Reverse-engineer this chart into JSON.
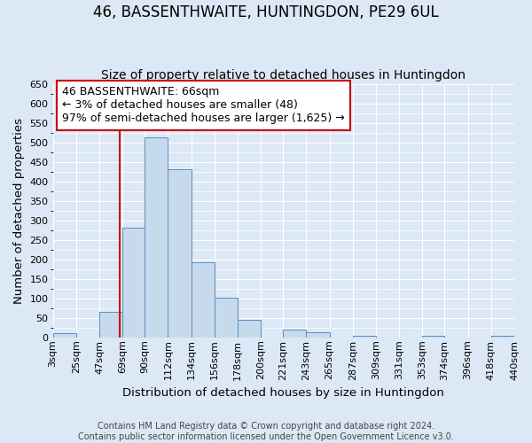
{
  "title": "46, BASSENTHWAITE, HUNTINGDON, PE29 6UL",
  "subtitle": "Size of property relative to detached houses in Huntingdon",
  "xlabel": "Distribution of detached houses by size in Huntingdon",
  "ylabel": "Number of detached properties",
  "footer_line1": "Contains HM Land Registry data © Crown copyright and database right 2024.",
  "footer_line2": "Contains public sector information licensed under the Open Government Licence v3.0.",
  "bin_labels": [
    "3sqm",
    "25sqm",
    "47sqm",
    "69sqm",
    "90sqm",
    "112sqm",
    "134sqm",
    "156sqm",
    "178sqm",
    "200sqm",
    "221sqm",
    "243sqm",
    "265sqm",
    "287sqm",
    "309sqm",
    "331sqm",
    "353sqm",
    "374sqm",
    "396sqm",
    "418sqm",
    "440sqm"
  ],
  "bin_edges": [
    3,
    25,
    47,
    69,
    90,
    112,
    134,
    156,
    178,
    200,
    221,
    243,
    265,
    287,
    309,
    331,
    353,
    374,
    396,
    418,
    440
  ],
  "bar_heights": [
    10,
    0,
    65,
    280,
    513,
    432,
    192,
    101,
    46,
    0,
    19,
    12,
    0,
    3,
    0,
    0,
    3,
    0,
    0,
    3
  ],
  "bar_color": "#c7d9ed",
  "bar_edge_color": "#5a8fc0",
  "property_size": 66,
  "vline_color": "#cc0000",
  "annotation_line1": "46 BASSENTHWAITE: 66sqm",
  "annotation_line2": "← 3% of detached houses are smaller (48)",
  "annotation_line3": "97% of semi-detached houses are larger (1,625) →",
  "annotation_box_color": "#ffffff",
  "annotation_box_edge_color": "#cc0000",
  "ylim": [
    0,
    650
  ],
  "yticks": [
    0,
    50,
    100,
    150,
    200,
    250,
    300,
    350,
    400,
    450,
    500,
    550,
    600,
    650
  ],
  "background_color": "#dce8f5",
  "plot_background_color": "#dce8f5",
  "grid_color": "#ffffff",
  "title_fontsize": 12,
  "subtitle_fontsize": 10,
  "axis_label_fontsize": 9.5,
  "tick_label_fontsize": 8,
  "annotation_fontsize": 9,
  "footer_fontsize": 7
}
